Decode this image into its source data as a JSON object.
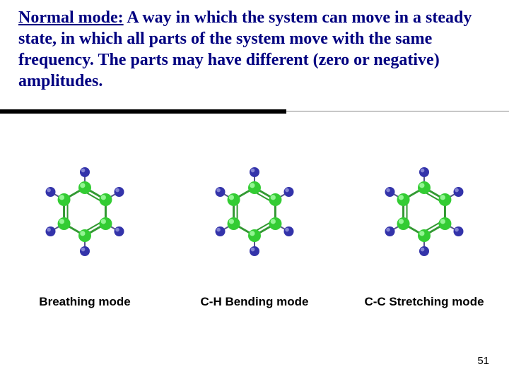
{
  "definition": {
    "term": "Normal mode:",
    "body": " A way in which the system can move in a steady state, in which all parts of the system move with the same frequency. The parts may have different (zero or negative) amplitudes.",
    "color": "#000080",
    "fontsize_pt": 18
  },
  "molecules": [
    {
      "caption": "Breathing mode"
    },
    {
      "caption": "C-H Bending mode"
    },
    {
      "caption": "C-C Stretching mode"
    }
  ],
  "page_number": "51",
  "benzene_style": {
    "ring_radius": 34,
    "outer_radius": 56,
    "carbon": {
      "r": 9,
      "fill": "#33cc33",
      "highlight": "#aaffaa"
    },
    "hydrogen": {
      "r": 7,
      "fill": "#3333aa",
      "highlight": "#9999dd"
    },
    "bond": {
      "stroke": "#339933",
      "width": 3
    },
    "ch_bond": {
      "stroke": "#555588",
      "width": 2
    },
    "background": "#ffffff"
  }
}
